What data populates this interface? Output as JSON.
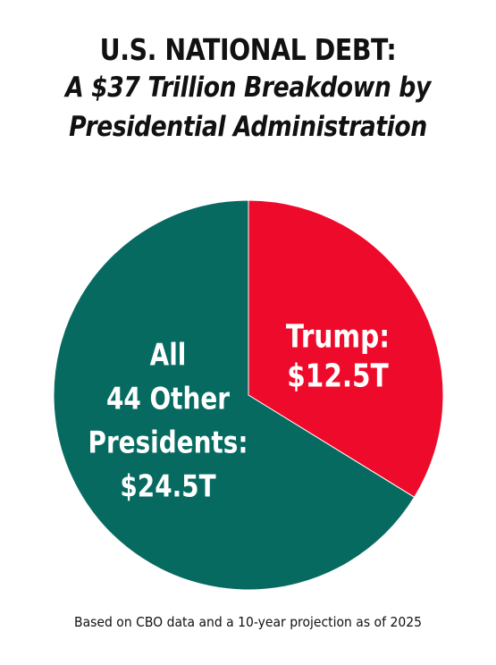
{
  "header": {
    "title_line1": "U.S. NATIONAL DEBT:",
    "title_line2": "A $37 Trillion Breakdown by",
    "title_line3": "Presidential Administration"
  },
  "footnote": "Based on CBO data and a 10-year projection as of 2025",
  "colors": {
    "trump": "#ee0a2a",
    "others": "#066a61",
    "label_text": "#ffffff"
  },
  "chart_data": {
    "type": "pie",
    "title": "U.S. NATIONAL DEBT: A $37 Trillion Breakdown by Presidential Administration",
    "unit": "trillion USD",
    "total": 37,
    "slices": [
      {
        "name": "Trump",
        "value": 12.5,
        "label_lines": [
          "Trump:",
          "$12.5T"
        ]
      },
      {
        "name": "All 44 Other Presidents",
        "value": 24.5,
        "label_lines": [
          "All",
          "44 Other",
          "Presidents:",
          "$24.5T"
        ]
      }
    ],
    "start": "12 o'clock",
    "direction": "clockwise",
    "legend": "none"
  }
}
